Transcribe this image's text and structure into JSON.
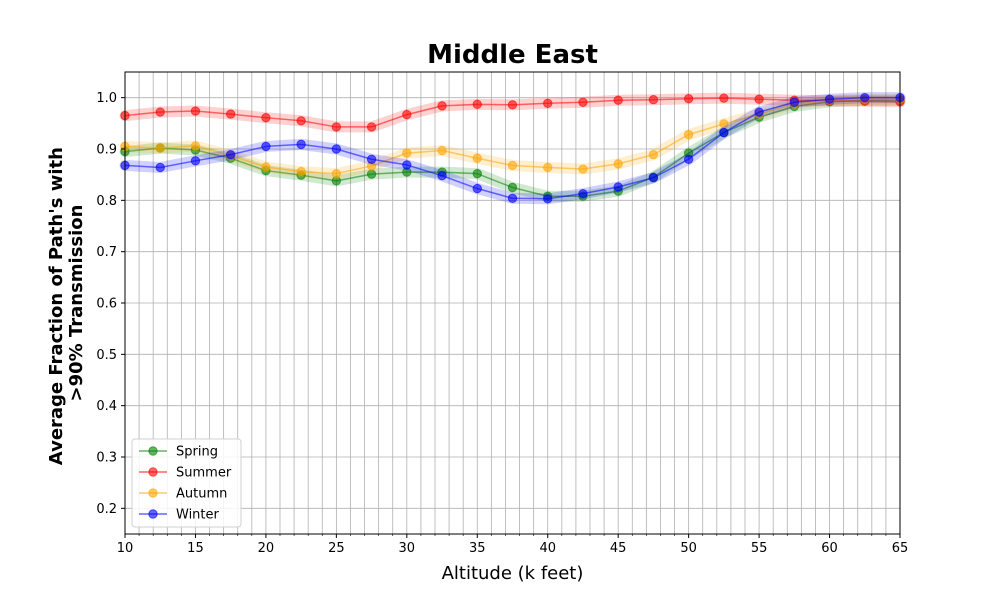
{
  "chart_data": {
    "type": "line",
    "title": "Middle East",
    "xlabel": "Altitude (k feet)",
    "ylabel_lines": [
      "Average Fraction of Path's with",
      ">90% Transmission"
    ],
    "xlim": [
      10,
      65
    ],
    "ylim": [
      0.15,
      1.05
    ],
    "x_major_ticks": [
      10,
      15,
      20,
      25,
      30,
      35,
      40,
      45,
      50,
      55,
      60,
      65
    ],
    "y_ticks": [
      0.2,
      0.3,
      0.4,
      0.5,
      0.6,
      0.7,
      0.8,
      0.9,
      1.0
    ],
    "y_tick_labels": [
      "0.2",
      "0.3",
      "0.4",
      "0.5",
      "0.6",
      "0.7",
      "0.8",
      "0.9",
      "1.0"
    ],
    "grid": true,
    "legend_position": "lower-left",
    "x": [
      10,
      12.5,
      15,
      17.5,
      20,
      22.5,
      25,
      27.5,
      30,
      32.5,
      35,
      37.5,
      40,
      42.5,
      45,
      47.5,
      50,
      52.5,
      55,
      57.5,
      60,
      62.5,
      65
    ],
    "series": [
      {
        "name": "Spring",
        "color": "#008000",
        "values": [
          0.895,
          0.902,
          0.898,
          0.882,
          0.858,
          0.849,
          0.838,
          0.851,
          0.855,
          0.855,
          0.852,
          0.825,
          0.808,
          0.808,
          0.818,
          0.845,
          0.892,
          0.932,
          0.962,
          0.983,
          0.992,
          0.995,
          0.995
        ]
      },
      {
        "name": "Summer",
        "color": "#ff0000",
        "values": [
          0.965,
          0.972,
          0.974,
          0.968,
          0.961,
          0.955,
          0.943,
          0.943,
          0.967,
          0.984,
          0.987,
          0.986,
          0.989,
          0.991,
          0.995,
          0.996,
          0.998,
          0.999,
          0.997,
          0.995,
          0.994,
          0.993,
          0.992
        ]
      },
      {
        "name": "Autumn",
        "color": "#ffa500",
        "values": [
          0.905,
          0.902,
          0.906,
          0.887,
          0.865,
          0.856,
          0.852,
          0.867,
          0.892,
          0.897,
          0.882,
          0.868,
          0.864,
          0.861,
          0.871,
          0.889,
          0.928,
          0.949,
          0.968,
          0.988,
          0.995,
          0.997,
          0.997
        ]
      },
      {
        "name": "Winter",
        "color": "#0000ff",
        "values": [
          0.868,
          0.864,
          0.877,
          0.889,
          0.905,
          0.909,
          0.9,
          0.88,
          0.869,
          0.848,
          0.823,
          0.804,
          0.803,
          0.813,
          0.826,
          0.844,
          0.88,
          0.932,
          0.972,
          0.991,
          0.997,
          1.0,
          1.0
        ]
      }
    ]
  }
}
